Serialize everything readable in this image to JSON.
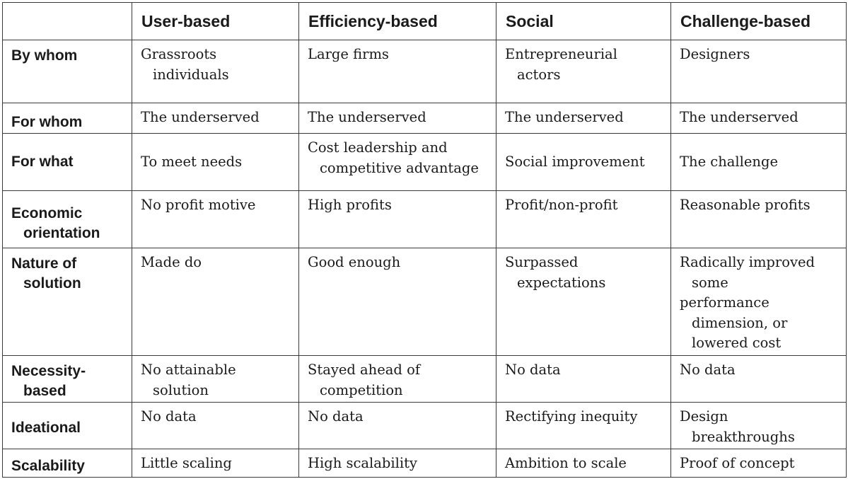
{
  "header": {
    "corner": "",
    "columns": [
      "User-based",
      "Efficiency-based",
      "Social",
      "Challenge-based"
    ]
  },
  "rows": [
    {
      "label": [
        "By whom"
      ],
      "cells": [
        [
          "Grassroots",
          "individuals"
        ],
        [
          "Large firms"
        ],
        [
          "Entrepreneurial",
          "actors"
        ],
        [
          "Designers"
        ]
      ]
    },
    {
      "label": [
        "For whom"
      ],
      "cells": [
        [
          "The underserved"
        ],
        [
          "The underserved"
        ],
        [
          "The underserved"
        ],
        [
          "The underserved"
        ]
      ]
    },
    {
      "label": [
        "For what"
      ],
      "cells": [
        [
          "To meet needs"
        ],
        [
          "Cost leadership and",
          "competitive advantage"
        ],
        [
          "Social improvement"
        ],
        [
          "The challenge"
        ]
      ]
    },
    {
      "label": [
        "Economic",
        "orientation"
      ],
      "cells": [
        [
          "No profit motive"
        ],
        [
          "High profits"
        ],
        [
          "Profit/non-profit"
        ],
        [
          "Reasonable profits"
        ]
      ]
    },
    {
      "label": [
        "Nature of",
        "solution"
      ],
      "cells": [
        [
          "Made do"
        ],
        [
          "Good enough"
        ],
        [
          "Surpassed",
          "expectations"
        ],
        [
          "Radically improved",
          "some",
          "performance",
          "dimension, or",
          "lowered cost"
        ]
      ]
    },
    {
      "label": [
        "Necessity-",
        "based"
      ],
      "cells": [
        [
          "No attainable",
          "solution"
        ],
        [
          "Stayed ahead of",
          "competition"
        ],
        [
          "No data"
        ],
        [
          "No data"
        ]
      ]
    },
    {
      "label": [
        "Ideational"
      ],
      "cells": [
        [
          "No data"
        ],
        [
          "No data"
        ],
        [
          "Rectifying inequity"
        ],
        [
          "Design",
          "breakthroughs"
        ]
      ]
    },
    {
      "label": [
        "Scalability"
      ],
      "cells": [
        [
          "Little scaling"
        ],
        [
          "High scalability"
        ],
        [
          "Ambition to scale"
        ],
        [
          "Proof of concept"
        ]
      ]
    }
  ]
}
